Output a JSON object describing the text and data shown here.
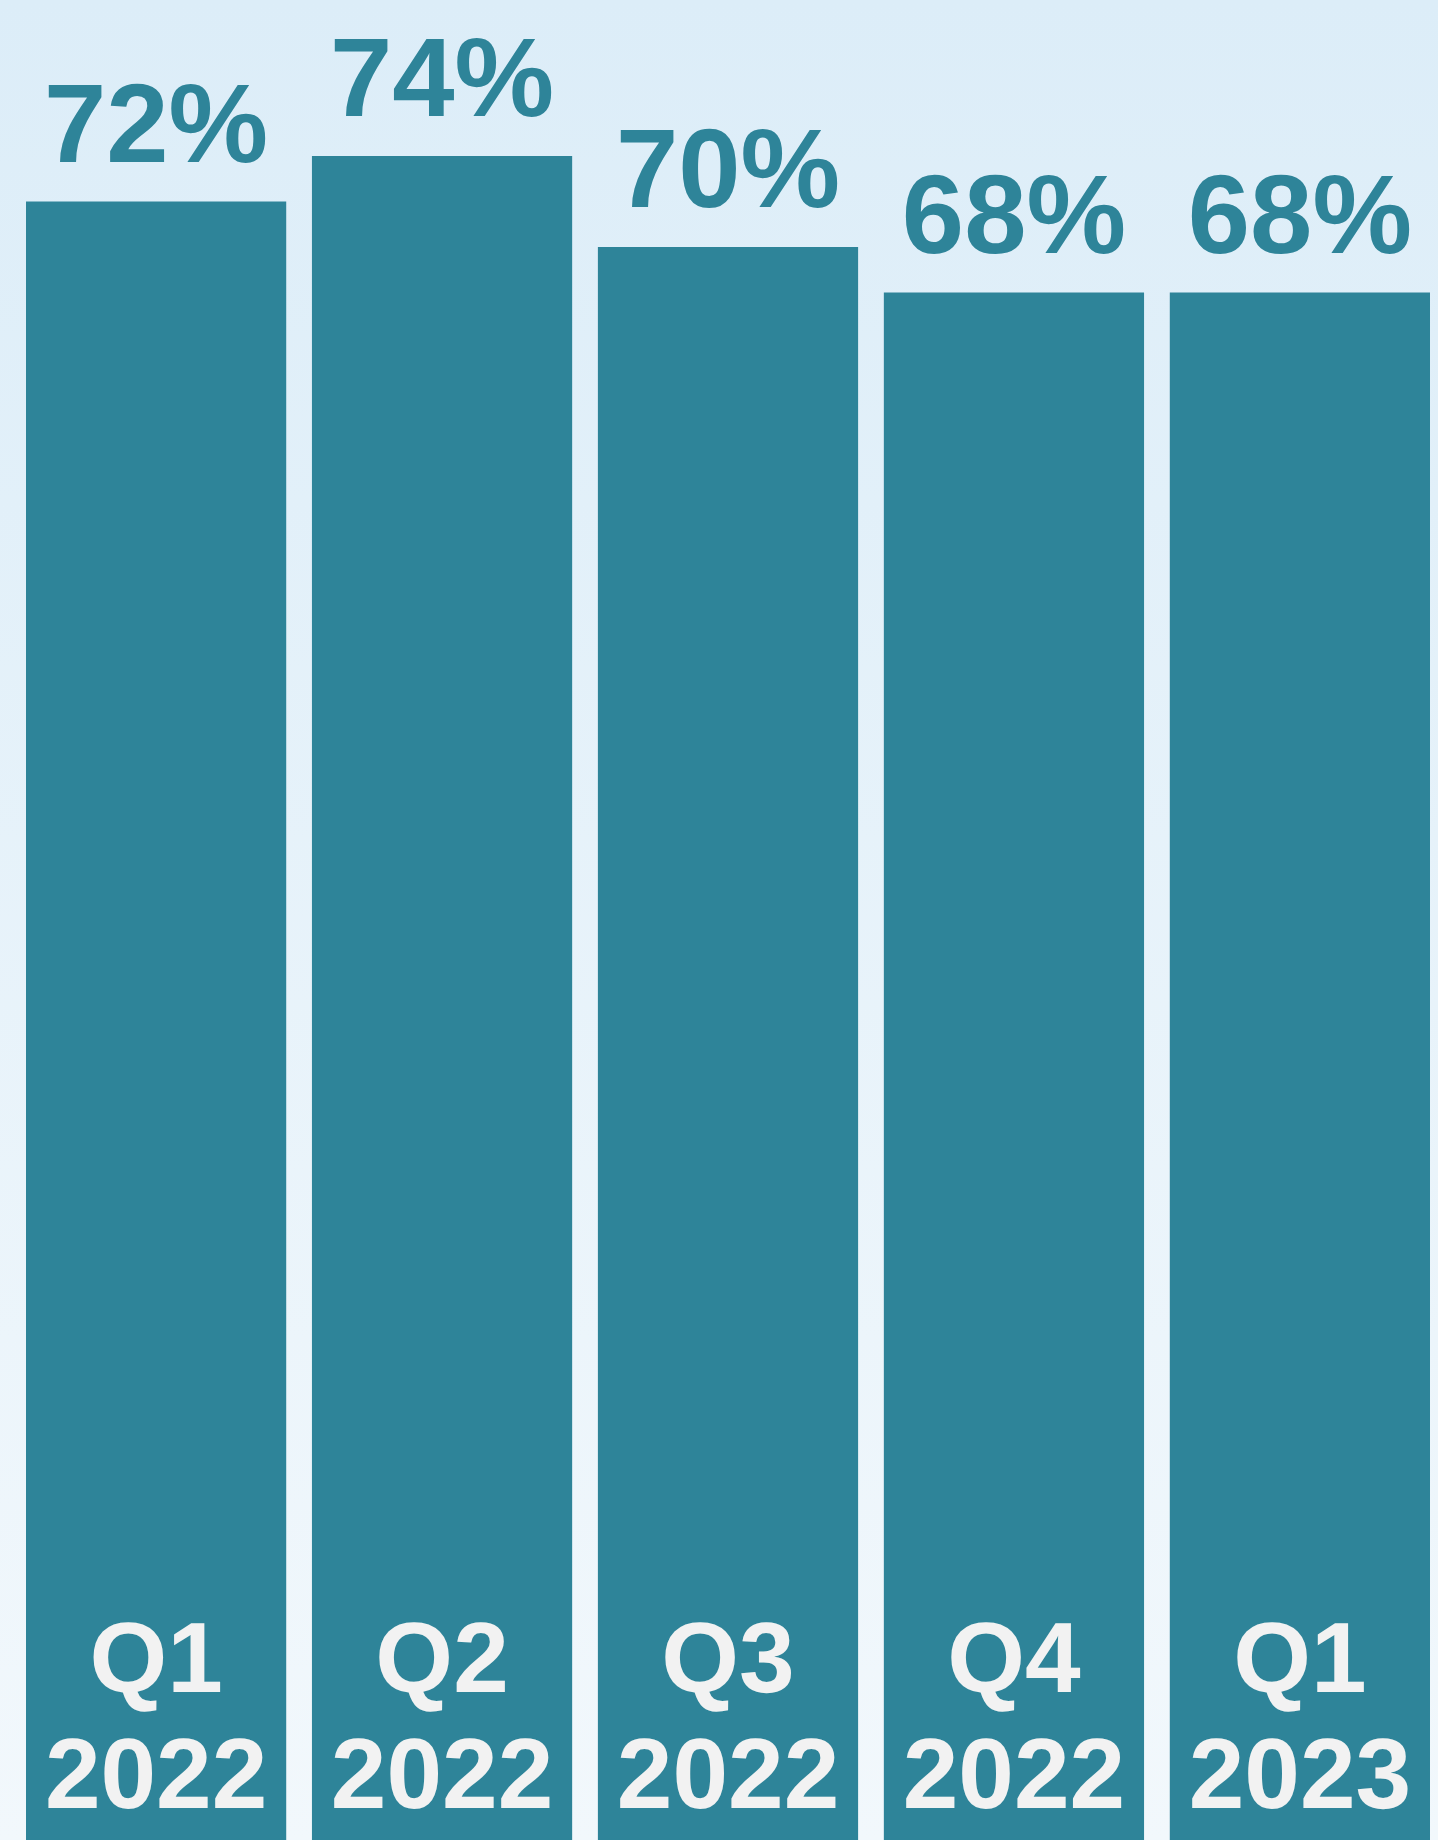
{
  "chart_data": {
    "type": "bar",
    "categories": [
      "Q1 2022",
      "Q2 2022",
      "Q3 2022",
      "Q4 2022",
      "Q1 2023"
    ],
    "values": [
      72,
      74,
      70,
      68,
      68
    ],
    "value_labels": [
      "72%",
      "74%",
      "70%",
      "68%",
      "68%"
    ],
    "color": "#2e8499"
  }
}
